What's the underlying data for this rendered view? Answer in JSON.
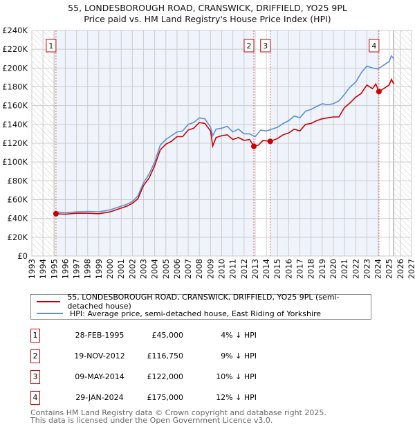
{
  "title_line1": "55, LONDESBOROUGH ROAD, CRANSWICK, DRIFFIELD, YO25 9PL",
  "title_line2": "Price paid vs. HM Land Registry's House Price Index (HPI)",
  "chart_data": {
    "type": "line",
    "ylim": [
      0,
      240000
    ],
    "xlim": [
      1993,
      2027
    ],
    "yticks": [
      0,
      20000,
      40000,
      60000,
      80000,
      100000,
      120000,
      140000,
      160000,
      180000,
      200000,
      220000,
      240000
    ],
    "ytick_labels": [
      "£0",
      "£20K",
      "£40K",
      "£60K",
      "£80K",
      "£100K",
      "£120K",
      "£140K",
      "£160K",
      "£180K",
      "£200K",
      "£220K",
      "£240K"
    ],
    "xtick_labels": [
      "1993",
      "1994",
      "1995",
      "1996",
      "1997",
      "1998",
      "1999",
      "2000",
      "2001",
      "2002",
      "2003",
      "2004",
      "2005",
      "2006",
      "2007",
      "2008",
      "2009",
      "2010",
      "2011",
      "2012",
      "2013",
      "2014",
      "2015",
      "2016",
      "2017",
      "2018",
      "2019",
      "2020",
      "2021",
      "2022",
      "2023",
      "2024",
      "2025",
      "2026",
      "2027"
    ],
    "grid": true,
    "hatched_before": 1995.0,
    "hatched_after": 2025.4,
    "series": [
      {
        "name": "55, LONDESBOROUGH ROAD, CRANSWICK, DRIFFIELD, YO25 9PL (semi-detached house)",
        "color": "#cc0000",
        "x": [
          1995.16,
          1996,
          1997,
          1998,
          1999,
          2000,
          2001,
          2001.5,
          2002,
          2002.5,
          2003,
          2003.5,
          2004,
          2004.5,
          2005,
          2005.5,
          2006,
          2006.5,
          2007,
          2007.5,
          2008,
          2008.5,
          2009,
          2009.2,
          2009.5,
          2010,
          2010.5,
          2011,
          2011.5,
          2012,
          2012.5,
          2012.88,
          2013.3,
          2013.7,
          2014.35,
          2015,
          2015.5,
          2016,
          2016.5,
          2017,
          2017.5,
          2018,
          2018.5,
          2019,
          2019.5,
          2020,
          2020.5,
          2021,
          2021.5,
          2022,
          2022.5,
          2023,
          2023.5,
          2023.8,
          2024.08,
          2024.5,
          2025,
          2025.2,
          2025.4
        ],
        "y": [
          45000,
          44500,
          45500,
          45500,
          45000,
          47000,
          51000,
          53000,
          56000,
          61000,
          75000,
          83000,
          96000,
          113000,
          119000,
          122000,
          127000,
          127000,
          134000,
          136000,
          142000,
          141000,
          133000,
          117000,
          126000,
          128000,
          129000,
          124000,
          126000,
          123000,
          124000,
          116750,
          118000,
          123000,
          122000,
          125000,
          129000,
          131000,
          135000,
          133000,
          140000,
          141000,
          144000,
          146000,
          147000,
          148000,
          148000,
          158000,
          163000,
          169000,
          173000,
          182000,
          178000,
          183000,
          175000,
          178000,
          182000,
          188000,
          183000
        ]
      },
      {
        "name": "HPI: Average price, semi-detached house, East Riding of Yorkshire",
        "color": "#5b8fd4",
        "x": [
          1995.16,
          1996,
          1997,
          1998,
          1999,
          2000,
          2001,
          2001.5,
          2002,
          2002.5,
          2003,
          2003.5,
          2004,
          2004.5,
          2005,
          2005.5,
          2006,
          2006.5,
          2007,
          2007.5,
          2008,
          2008.5,
          2009,
          2009.2,
          2009.5,
          2010,
          2010.5,
          2011,
          2011.5,
          2012,
          2012.5,
          2013,
          2013.5,
          2014,
          2014.5,
          2015,
          2015.5,
          2016,
          2016.5,
          2017,
          2017.5,
          2018,
          2018.5,
          2019,
          2019.5,
          2020,
          2020.5,
          2021,
          2021.5,
          2022,
          2022.5,
          2023,
          2023.5,
          2024,
          2024.5,
          2025,
          2025.2,
          2025.4
        ],
        "y": [
          47000,
          46000,
          47000,
          47500,
          47000,
          49000,
          53000,
          55000,
          58000,
          64000,
          78000,
          87000,
          100000,
          118000,
          124000,
          128000,
          132000,
          133000,
          140000,
          142000,
          147000,
          146000,
          137000,
          128000,
          135000,
          136000,
          138000,
          132000,
          135000,
          130000,
          130000,
          127000,
          134000,
          133000,
          135000,
          137000,
          141000,
          144000,
          149000,
          147000,
          154000,
          156000,
          159000,
          162000,
          161000,
          162000,
          165000,
          172000,
          180000,
          185000,
          195000,
          202000,
          200000,
          199000,
          203000,
          207000,
          213000,
          210000
        ]
      }
    ],
    "sales": [
      {
        "label": "1",
        "x": 1995.16,
        "y": 45000
      },
      {
        "label": "2",
        "x": 2012.88,
        "y": 116750
      },
      {
        "label": "3",
        "x": 2014.35,
        "y": 122000
      },
      {
        "label": "4",
        "x": 2024.08,
        "y": 175000
      }
    ]
  },
  "legend": {
    "red_label": "55, LONDESBOROUGH ROAD, CRANSWICK, DRIFFIELD, YO25 9PL (semi-detached house)",
    "blue_label": "HPI: Average price, semi-detached house, East Riding of Yorkshire"
  },
  "table": [
    {
      "num": "1",
      "date": "28-FEB-1995",
      "price": "£45,000",
      "pct": "4% ↓ HPI"
    },
    {
      "num": "2",
      "date": "19-NOV-2012",
      "price": "£116,750",
      "pct": "9% ↓ HPI"
    },
    {
      "num": "3",
      "date": "09-MAY-2014",
      "price": "£122,000",
      "pct": "10% ↓ HPI"
    },
    {
      "num": "4",
      "date": "29-JAN-2024",
      "price": "£175,000",
      "pct": "12% ↓ HPI"
    }
  ],
  "footer_line1": "Contains HM Land Registry data © Crown copyright and database right 2025.",
  "footer_line2": "This data is licensed under the Open Government Licence v3.0."
}
